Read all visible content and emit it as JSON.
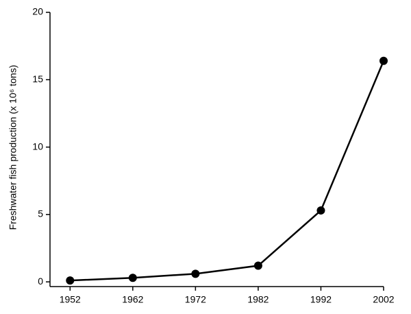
{
  "chart_data": {
    "type": "line",
    "y_label": "Freshwater fish production (x 10⁶ tons)",
    "x": [
      1952,
      1962,
      1972,
      1982,
      1992,
      2002
    ],
    "series": [
      {
        "color": "#000000",
        "values": [
          0.1,
          0.3,
          0.6,
          1.2,
          5.3,
          16.4
        ]
      }
    ],
    "xlim": [
      1948.8,
      2002
    ],
    "xticks": [
      1952,
      1962,
      1972,
      1982,
      1992,
      2002
    ],
    "ylim": [
      -0.35,
      20
    ],
    "yticks": [
      0,
      5,
      10,
      15,
      20
    ]
  }
}
